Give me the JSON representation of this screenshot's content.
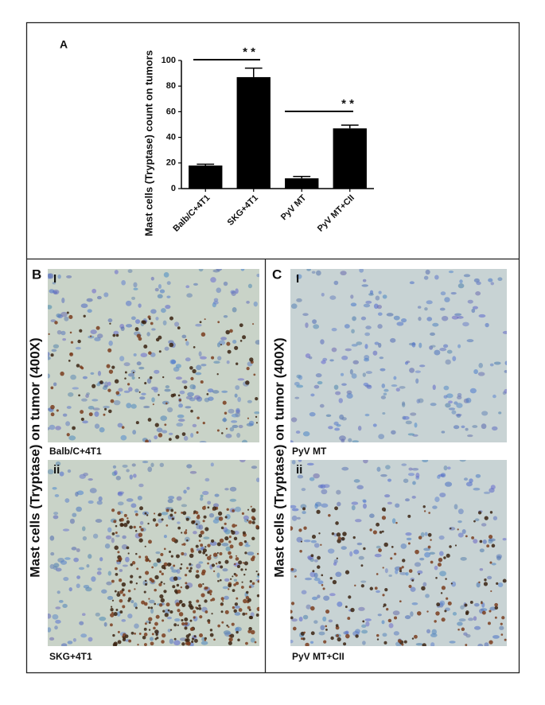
{
  "chart_data": {
    "type": "bar",
    "panel": "A",
    "y_label": "Mast cells (Tryptase) count on tumors",
    "categories": [
      "Balb/C+4T1",
      "SKG+4T1",
      "PyV MT",
      "PyV MT+CII"
    ],
    "values": [
      18,
      87,
      8,
      47
    ],
    "errors": [
      1,
      7,
      1.5,
      2.5
    ],
    "color": "#000000",
    "ylim": [
      0,
      100
    ],
    "yticks": [
      0,
      20,
      40,
      60,
      80,
      100
    ],
    "annotations": [
      "* *",
      "* *"
    ]
  },
  "panels": [
    {
      "letter": "B",
      "y_label": "Mast cells (Tryptase) on tumor (400X)",
      "images": [
        {
          "index": "I",
          "caption": "Balb/C+4T1"
        },
        {
          "index": "ii",
          "caption": "SKG+4T1"
        }
      ]
    },
    {
      "letter": "C",
      "y_label": "Mast cells (Tryptase) on tumor (400X)",
      "images": [
        {
          "index": "I",
          "caption": "PyV MT"
        },
        {
          "index": "ii",
          "caption": "PyV MT+CII"
        }
      ]
    }
  ]
}
